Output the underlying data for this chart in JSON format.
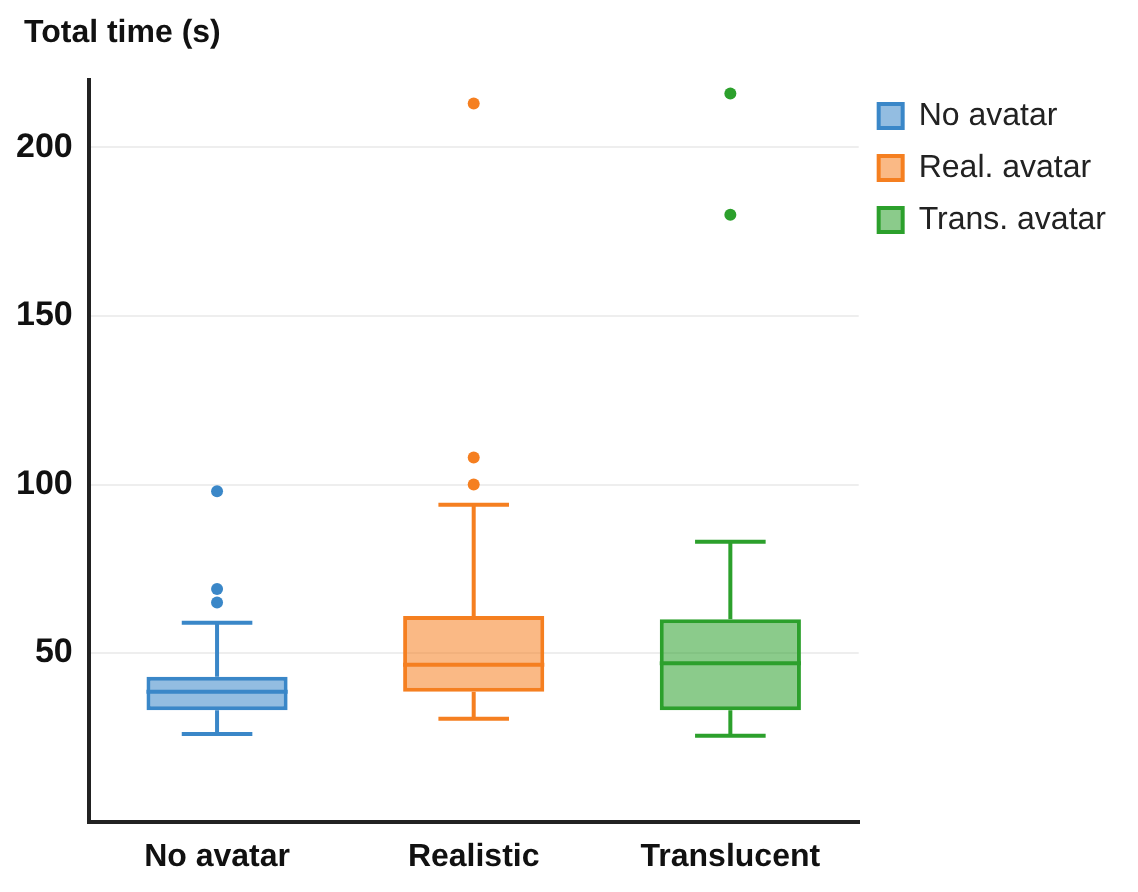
{
  "chart_data": {
    "type": "box",
    "ylabel": "Total time (s)",
    "categories": [
      "No avatar",
      "Realistic",
      "Translucent"
    ],
    "ylim": [
      0,
      220
    ],
    "yticks": [
      50,
      100,
      150,
      200
    ],
    "grid": "y",
    "legend": "top right",
    "series": [
      {
        "name": "No avatar",
        "color": "#3a87c8",
        "boxes": [
          {
            "low": 26,
            "q1": 33,
            "median": 38.5,
            "q3": 43,
            "high": 59,
            "outliers": [
              98,
              69,
              65
            ]
          },
          null,
          null
        ]
      },
      {
        "name": "Real. avatar",
        "color": "#f57f20",
        "boxes": [
          null,
          {
            "low": 30.5,
            "q1": 38.5,
            "median": 46.5,
            "q3": 61,
            "high": 94,
            "outliers": [
              213,
              108,
              100
            ]
          },
          null
        ]
      },
      {
        "name": "Trans. avatar",
        "color": "#2ca02c",
        "boxes": [
          null,
          null,
          {
            "low": 25.5,
            "q1": 33,
            "median": 47,
            "q3": 60,
            "high": 83,
            "outliers": [
              216,
              180
            ]
          }
        ]
      }
    ]
  }
}
